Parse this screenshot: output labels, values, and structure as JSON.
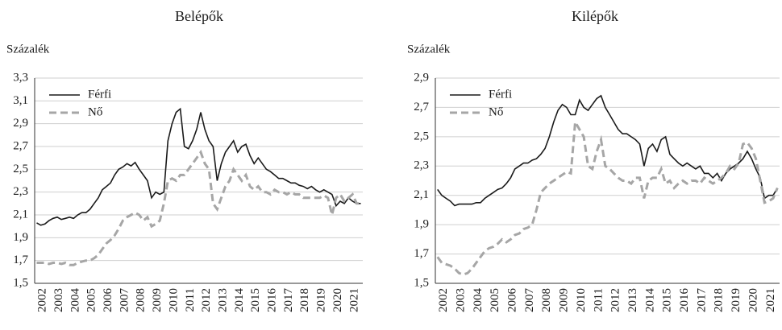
{
  "chart_data": [
    {
      "type": "line",
      "title": "Belépők",
      "y_label": "Százalék",
      "categories": [
        "2002",
        null,
        null,
        null,
        "2003",
        null,
        null,
        null,
        "2004",
        null,
        null,
        null,
        "2005",
        null,
        null,
        null,
        "2006",
        null,
        null,
        null,
        "2007",
        null,
        null,
        null,
        "2008",
        null,
        null,
        null,
        "2009",
        null,
        null,
        null,
        "2010",
        null,
        null,
        null,
        "2011",
        null,
        null,
        null,
        "2012",
        null,
        null,
        null,
        "2013",
        null,
        null,
        null,
        "2014",
        null,
        null,
        null,
        "2015",
        null,
        null,
        null,
        "2016",
        null,
        null,
        null,
        "2017",
        null,
        null,
        null,
        "2018",
        null,
        null,
        null,
        "2019",
        null,
        null,
        null,
        "2020",
        null,
        null,
        null,
        "2021",
        null,
        null,
        null
      ],
      "series": [
        {
          "name": "Férfi",
          "color": "#1a1a1a",
          "dash": "solid",
          "values": [
            2.03,
            2.01,
            2.02,
            2.05,
            2.07,
            2.08,
            2.06,
            2.07,
            2.08,
            2.07,
            2.1,
            2.12,
            2.12,
            2.15,
            2.2,
            2.25,
            2.32,
            2.35,
            2.38,
            2.45,
            2.5,
            2.52,
            2.55,
            2.53,
            2.56,
            2.5,
            2.45,
            2.4,
            2.25,
            2.3,
            2.28,
            2.3,
            2.75,
            2.9,
            3.0,
            3.03,
            2.7,
            2.68,
            2.75,
            2.85,
            3.0,
            2.85,
            2.75,
            2.7,
            2.4,
            2.55,
            2.65,
            2.7,
            2.75,
            2.65,
            2.7,
            2.72,
            2.62,
            2.55,
            2.6,
            2.55,
            2.5,
            2.48,
            2.45,
            2.42,
            2.42,
            2.4,
            2.38,
            2.38,
            2.36,
            2.35,
            2.33,
            2.35,
            2.32,
            2.3,
            2.32,
            2.3,
            2.28,
            2.18,
            2.22,
            2.2,
            2.25,
            2.22,
            2.2,
            2.2
          ]
        },
        {
          "name": "Nő",
          "color": "#a6a6a6",
          "dash": "dashed",
          "values": [
            1.68,
            1.68,
            1.68,
            1.67,
            1.68,
            1.68,
            1.67,
            1.68,
            1.66,
            1.66,
            1.68,
            1.69,
            1.7,
            1.7,
            1.72,
            1.75,
            1.8,
            1.85,
            1.88,
            1.92,
            1.98,
            2.05,
            2.08,
            2.1,
            2.12,
            2.1,
            2.05,
            2.08,
            2.0,
            2.02,
            2.05,
            2.2,
            2.4,
            2.42,
            2.4,
            2.45,
            2.45,
            2.5,
            2.55,
            2.6,
            2.65,
            2.55,
            2.5,
            2.2,
            2.15,
            2.25,
            2.35,
            2.4,
            2.5,
            2.45,
            2.4,
            2.45,
            2.35,
            2.32,
            2.35,
            2.3,
            2.3,
            2.28,
            2.32,
            2.3,
            2.3,
            2.28,
            2.3,
            2.28,
            2.28,
            2.25,
            2.25,
            2.25,
            2.25,
            2.25,
            2.27,
            2.25,
            2.1,
            2.25,
            2.28,
            2.22,
            2.25,
            2.28,
            2.2,
            2.2
          ]
        }
      ],
      "ylim": [
        1.5,
        3.3
      ],
      "yticks": [
        {
          "value": 1.5,
          "label": "1,5"
        },
        {
          "value": 1.7,
          "label": "1,7"
        },
        {
          "value": 1.9,
          "label": "1,9"
        },
        {
          "value": 2.1,
          "label": "2,1"
        },
        {
          "value": 2.3,
          "label": "2,3"
        },
        {
          "value": 2.5,
          "label": "2,5"
        },
        {
          "value": 2.7,
          "label": "2,7"
        },
        {
          "value": 2.9,
          "label": "2,9"
        },
        {
          "value": 3.1,
          "label": "3,1"
        },
        {
          "value": 3.3,
          "label": "3,3"
        }
      ],
      "grid": true,
      "legend": "top-left"
    },
    {
      "type": "line",
      "title": "Kilépők",
      "y_label": "Százalék",
      "categories": [
        "2002",
        null,
        null,
        null,
        "2003",
        null,
        null,
        null,
        "2004",
        null,
        null,
        null,
        "2005",
        null,
        null,
        null,
        "2006",
        null,
        null,
        null,
        "2007",
        null,
        null,
        null,
        "2008",
        null,
        null,
        null,
        "2009",
        null,
        null,
        null,
        "2010",
        null,
        null,
        null,
        "2011",
        null,
        null,
        null,
        "2012",
        null,
        null,
        null,
        "2013",
        null,
        null,
        null,
        "2014",
        null,
        null,
        null,
        "2015",
        null,
        null,
        null,
        "2016",
        null,
        null,
        null,
        "2017",
        null,
        null,
        null,
        "2018",
        null,
        null,
        null,
        "2019",
        null,
        null,
        null,
        "2020",
        null,
        null,
        null,
        "2021",
        null,
        null,
        null
      ],
      "series": [
        {
          "name": "Férfi",
          "color": "#1a1a1a",
          "dash": "solid",
          "values": [
            2.14,
            2.1,
            2.08,
            2.06,
            2.03,
            2.04,
            2.04,
            2.04,
            2.04,
            2.05,
            2.05,
            2.08,
            2.1,
            2.12,
            2.14,
            2.15,
            2.18,
            2.22,
            2.28,
            2.3,
            2.32,
            2.32,
            2.34,
            2.35,
            2.38,
            2.42,
            2.5,
            2.6,
            2.68,
            2.72,
            2.7,
            2.65,
            2.65,
            2.75,
            2.7,
            2.68,
            2.72,
            2.76,
            2.78,
            2.7,
            2.65,
            2.6,
            2.55,
            2.52,
            2.52,
            2.5,
            2.48,
            2.45,
            2.3,
            2.42,
            2.45,
            2.4,
            2.48,
            2.5,
            2.38,
            2.35,
            2.32,
            2.3,
            2.32,
            2.3,
            2.28,
            2.3,
            2.25,
            2.25,
            2.22,
            2.25,
            2.2,
            2.25,
            2.28,
            2.3,
            2.32,
            2.35,
            2.4,
            2.35,
            2.28,
            2.22,
            2.08,
            2.1,
            2.1,
            2.15
          ]
        },
        {
          "name": "Nő",
          "color": "#a6a6a6",
          "dash": "dashed",
          "values": [
            1.68,
            1.64,
            1.63,
            1.62,
            1.6,
            1.57,
            1.56,
            1.57,
            1.6,
            1.64,
            1.68,
            1.72,
            1.74,
            1.75,
            1.77,
            1.8,
            1.78,
            1.8,
            1.83,
            1.84,
            1.87,
            1.88,
            1.9,
            2.0,
            2.12,
            2.15,
            2.18,
            2.2,
            2.22,
            2.24,
            2.26,
            2.25,
            2.6,
            2.55,
            2.5,
            2.3,
            2.28,
            2.4,
            2.48,
            2.3,
            2.28,
            2.25,
            2.22,
            2.2,
            2.2,
            2.18,
            2.22,
            2.22,
            2.08,
            2.2,
            2.22,
            2.22,
            2.28,
            2.18,
            2.2,
            2.15,
            2.18,
            2.2,
            2.18,
            2.2,
            2.2,
            2.18,
            2.22,
            2.2,
            2.18,
            2.2,
            2.22,
            2.25,
            2.3,
            2.28,
            2.32,
            2.45,
            2.46,
            2.42,
            2.35,
            2.2,
            2.05,
            2.06,
            2.08,
            2.15
          ]
        }
      ],
      "ylim": [
        1.5,
        2.9
      ],
      "yticks": [
        {
          "value": 1.5,
          "label": "1,5"
        },
        {
          "value": 1.7,
          "label": "1,7"
        },
        {
          "value": 1.9,
          "label": "1,9"
        },
        {
          "value": 2.1,
          "label": "2,1"
        },
        {
          "value": 2.3,
          "label": "2,3"
        },
        {
          "value": 2.5,
          "label": "2,5"
        },
        {
          "value": 2.7,
          "label": "2,7"
        },
        {
          "value": 2.9,
          "label": "2,9"
        }
      ],
      "grid": true,
      "legend": "top-left"
    }
  ]
}
